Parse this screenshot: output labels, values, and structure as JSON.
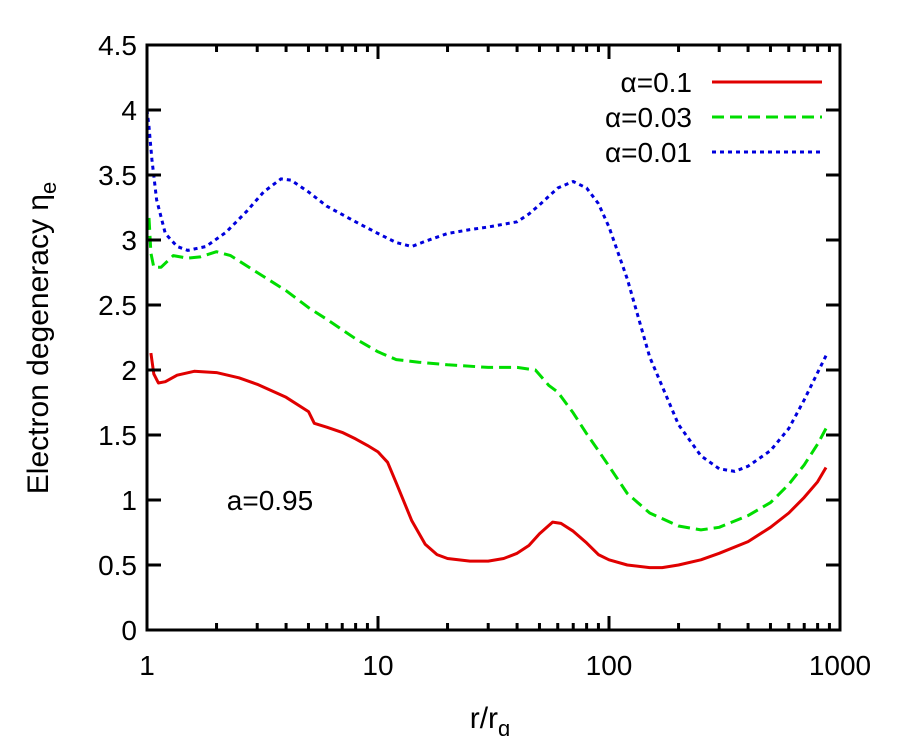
{
  "chart_data": {
    "type": "line",
    "xlabel": "r/r",
    "xlabel_sub": "g",
    "ylabel": "Electron degeneracy η",
    "ylabel_sub": "e",
    "xscale": "log",
    "xlim": [
      1,
      1000
    ],
    "ylim": [
      0,
      4.5
    ],
    "xticks": [
      1,
      10,
      100,
      1000
    ],
    "xtick_labels": [
      "1",
      "10",
      "100",
      "1000"
    ],
    "yticks": [
      0,
      0.5,
      1,
      1.5,
      2,
      2.5,
      3,
      3.5,
      4,
      4.5
    ],
    "ytick_labels": [
      "0",
      "0.5",
      "1",
      "1.5",
      "2",
      "2.5",
      "3",
      "3.5",
      "4",
      "4.5"
    ],
    "grid": false,
    "legend_position": "top-right",
    "annotation": "a=0.95",
    "series": [
      {
        "name": "α=0.1",
        "color": "#e00000",
        "dash": "solid",
        "points": [
          [
            1.04,
            2.13
          ],
          [
            1.07,
            1.97
          ],
          [
            1.12,
            1.9
          ],
          [
            1.2,
            1.91
          ],
          [
            1.35,
            1.96
          ],
          [
            1.6,
            1.99
          ],
          [
            2,
            1.98
          ],
          [
            2.5,
            1.94
          ],
          [
            3,
            1.89
          ],
          [
            4,
            1.79
          ],
          [
            5,
            1.68
          ],
          [
            5.3,
            1.59
          ],
          [
            6,
            1.56
          ],
          [
            7,
            1.52
          ],
          [
            8,
            1.47
          ],
          [
            9,
            1.42
          ],
          [
            10,
            1.37
          ],
          [
            11,
            1.29
          ],
          [
            12,
            1.13
          ],
          [
            14,
            0.84
          ],
          [
            16,
            0.66
          ],
          [
            18,
            0.58
          ],
          [
            20,
            0.55
          ],
          [
            25,
            0.53
          ],
          [
            30,
            0.53
          ],
          [
            35,
            0.55
          ],
          [
            40,
            0.59
          ],
          [
            45,
            0.65
          ],
          [
            50,
            0.74
          ],
          [
            57,
            0.83
          ],
          [
            62,
            0.82
          ],
          [
            70,
            0.76
          ],
          [
            80,
            0.67
          ],
          [
            90,
            0.58
          ],
          [
            100,
            0.54
          ],
          [
            120,
            0.5
          ],
          [
            150,
            0.48
          ],
          [
            170,
            0.48
          ],
          [
            200,
            0.5
          ],
          [
            250,
            0.54
          ],
          [
            300,
            0.59
          ],
          [
            400,
            0.68
          ],
          [
            500,
            0.79
          ],
          [
            600,
            0.9
          ],
          [
            700,
            1.02
          ],
          [
            800,
            1.14
          ],
          [
            870,
            1.25
          ]
        ]
      },
      {
        "name": "α=0.03",
        "color": "#00dd00",
        "dash": "dashed",
        "points": [
          [
            1.02,
            3.17
          ],
          [
            1.04,
            2.9
          ],
          [
            1.07,
            2.79
          ],
          [
            1.15,
            2.79
          ],
          [
            1.3,
            2.88
          ],
          [
            1.5,
            2.86
          ],
          [
            1.7,
            2.87
          ],
          [
            2,
            2.91
          ],
          [
            2.3,
            2.88
          ],
          [
            3,
            2.75
          ],
          [
            4,
            2.61
          ],
          [
            5,
            2.48
          ],
          [
            6,
            2.39
          ],
          [
            8,
            2.24
          ],
          [
            10,
            2.14
          ],
          [
            12,
            2.08
          ],
          [
            15,
            2.06
          ],
          [
            20,
            2.04
          ],
          [
            30,
            2.02
          ],
          [
            40,
            2.02
          ],
          [
            48,
            2.0
          ],
          [
            55,
            1.88
          ],
          [
            60,
            1.83
          ],
          [
            70,
            1.67
          ],
          [
            80,
            1.51
          ],
          [
            90,
            1.38
          ],
          [
            100,
            1.26
          ],
          [
            120,
            1.05
          ],
          [
            150,
            0.9
          ],
          [
            200,
            0.8
          ],
          [
            250,
            0.77
          ],
          [
            300,
            0.79
          ],
          [
            400,
            0.88
          ],
          [
            500,
            0.98
          ],
          [
            600,
            1.12
          ],
          [
            700,
            1.27
          ],
          [
            800,
            1.43
          ],
          [
            870,
            1.55
          ]
        ]
      },
      {
        "name": "α=0.01",
        "color": "#0000dd",
        "dash": "dotted",
        "points": [
          [
            1.0,
            4.0
          ],
          [
            1.02,
            3.87
          ],
          [
            1.05,
            3.62
          ],
          [
            1.1,
            3.31
          ],
          [
            1.2,
            3.05
          ],
          [
            1.35,
            2.95
          ],
          [
            1.5,
            2.92
          ],
          [
            1.8,
            2.95
          ],
          [
            2.2,
            3.06
          ],
          [
            2.7,
            3.22
          ],
          [
            3.2,
            3.37
          ],
          [
            3.8,
            3.47
          ],
          [
            4.2,
            3.46
          ],
          [
            5,
            3.37
          ],
          [
            6,
            3.26
          ],
          [
            8,
            3.14
          ],
          [
            10,
            3.05
          ],
          [
            12,
            2.98
          ],
          [
            14,
            2.95
          ],
          [
            16,
            2.99
          ],
          [
            20,
            3.05
          ],
          [
            25,
            3.08
          ],
          [
            30,
            3.1
          ],
          [
            40,
            3.14
          ],
          [
            45,
            3.2
          ],
          [
            50,
            3.27
          ],
          [
            60,
            3.4
          ],
          [
            70,
            3.45
          ],
          [
            80,
            3.4
          ],
          [
            90,
            3.28
          ],
          [
            100,
            3.1
          ],
          [
            120,
            2.7
          ],
          [
            150,
            2.1
          ],
          [
            200,
            1.58
          ],
          [
            250,
            1.34
          ],
          [
            300,
            1.24
          ],
          [
            350,
            1.22
          ],
          [
            400,
            1.26
          ],
          [
            500,
            1.38
          ],
          [
            600,
            1.55
          ],
          [
            700,
            1.77
          ],
          [
            800,
            1.98
          ],
          [
            870,
            2.11
          ]
        ]
      }
    ]
  }
}
